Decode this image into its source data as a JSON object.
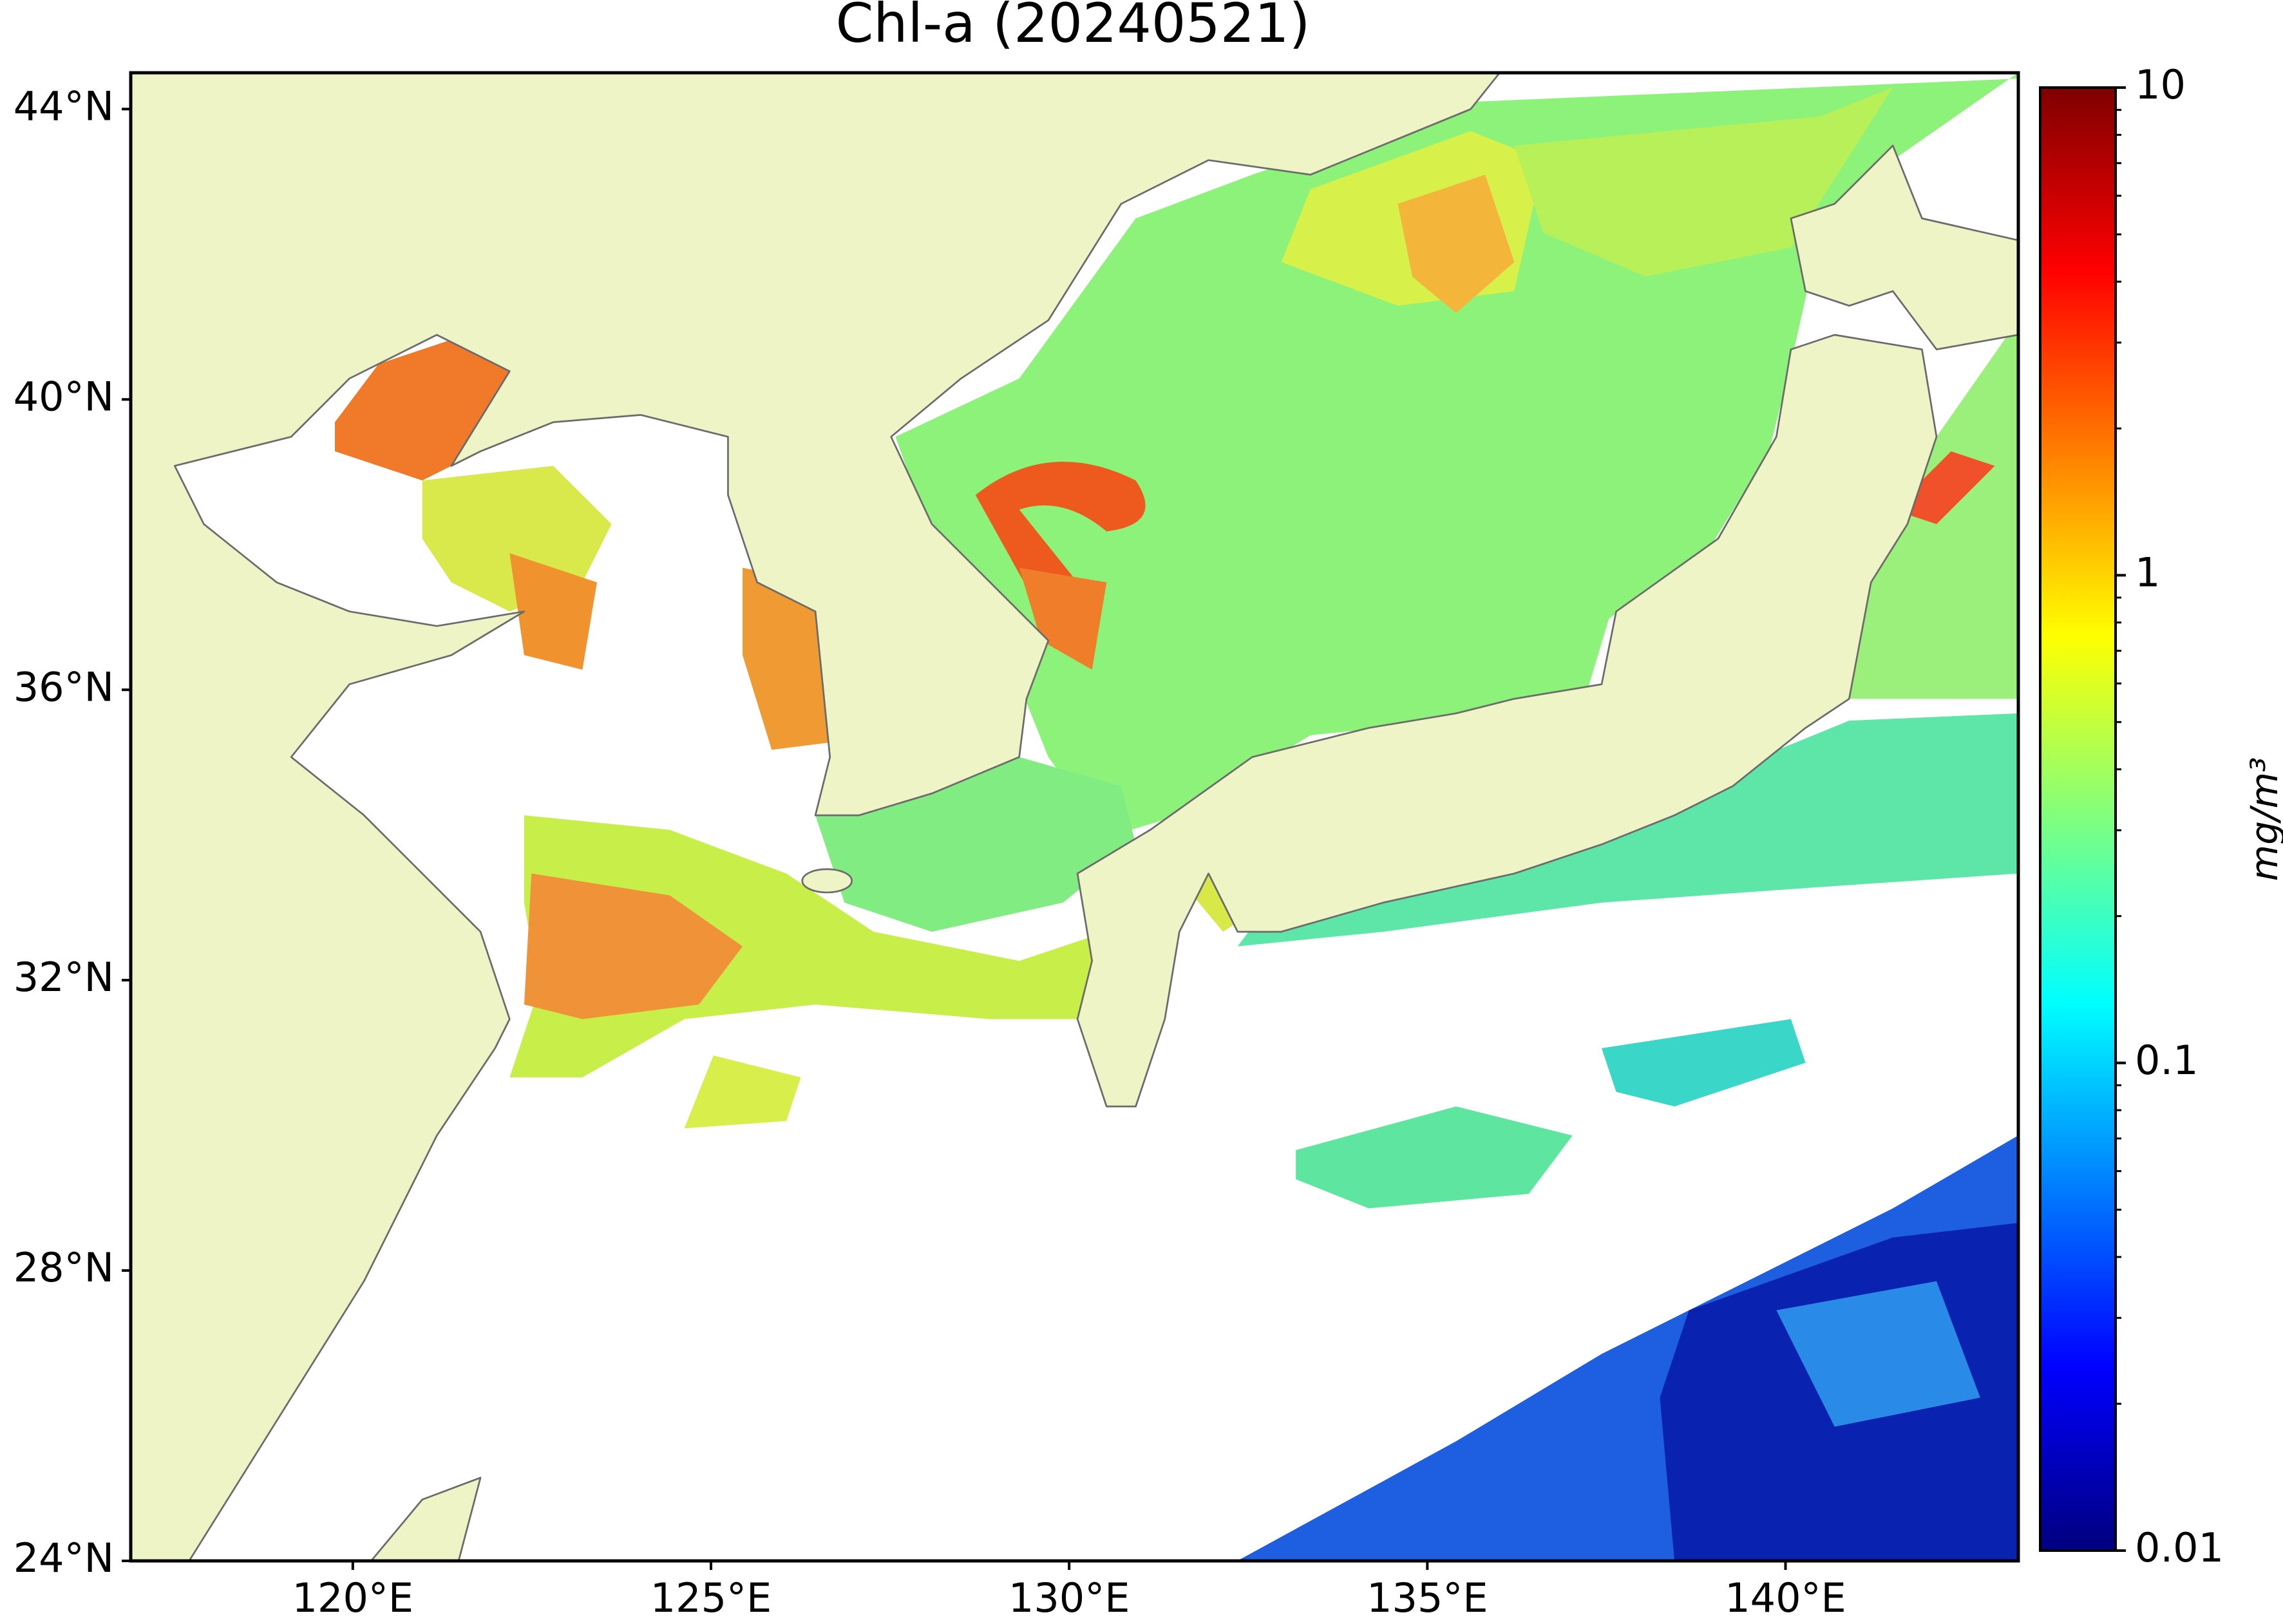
{
  "chart_data": {
    "type": "map",
    "title": "Chl-a (20240521)",
    "xlim": [
      116.9,
      143.25
    ],
    "ylim": [
      24,
      44.5
    ],
    "xticks": [
      {
        "value": 120,
        "label": "120°E"
      },
      {
        "value": 125,
        "label": "125°E"
      },
      {
        "value": 130,
        "label": "130°E"
      },
      {
        "value": 135,
        "label": "135°E"
      },
      {
        "value": 140,
        "label": "140°E"
      }
    ],
    "yticks": [
      {
        "value": 24,
        "label": "24°N"
      },
      {
        "value": 28,
        "label": "28°N"
      },
      {
        "value": 32,
        "label": "32°N"
      },
      {
        "value": 36,
        "label": "36°N"
      },
      {
        "value": 40,
        "label": "40°N"
      },
      {
        "value": 44,
        "label": "44°N"
      }
    ],
    "land_color": "#eff4c7",
    "colorbar": {
      "label": "mg/m³",
      "scale": "log",
      "colormap": "jet",
      "lim": [
        0.01,
        10
      ],
      "ticks": [
        0.01,
        0.1,
        1,
        10
      ],
      "minor_ticks": [
        0.02,
        0.03,
        0.04,
        0.05,
        0.06,
        0.07,
        0.08,
        0.09,
        0.2,
        0.3,
        0.4,
        0.5,
        0.6,
        0.7,
        0.8,
        0.9,
        2,
        3,
        4,
        5,
        6,
        7,
        8,
        9
      ]
    }
  }
}
